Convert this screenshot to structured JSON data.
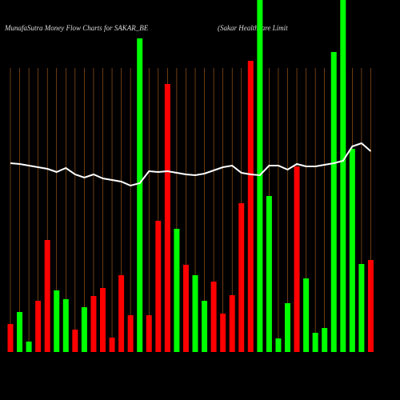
{
  "chart_data": {
    "type": "bar",
    "title": "MunafaSutra  Money Flow  Charts for SAKAR_BE",
    "subtitle": "(Sakar Healthcare   Limit",
    "values": [
      35,
      50,
      13,
      64,
      140,
      77,
      66,
      28,
      56,
      70,
      80,
      18,
      96,
      46,
      392,
      46,
      164,
      335,
      154,
      109,
      96,
      64,
      88,
      48,
      71,
      186,
      364,
      440,
      195,
      17,
      61,
      232,
      92,
      24,
      30,
      375,
      440,
      254,
      110,
      115
    ],
    "colors": [
      "red",
      "lime",
      "lime",
      "red",
      "red",
      "lime",
      "lime",
      "red",
      "lime",
      "red",
      "red",
      "red",
      "red",
      "red",
      "lime",
      "red",
      "red",
      "red",
      "lime",
      "red",
      "lime",
      "lime",
      "red",
      "red",
      "red",
      "red",
      "red",
      "lime",
      "lime",
      "lime",
      "lime",
      "red",
      "lime",
      "lime",
      "lime",
      "lime",
      "lime",
      "lime",
      "lime",
      "red"
    ],
    "line": {
      "color": "#ffffff",
      "values": [
        236,
        235,
        233,
        231,
        229,
        225,
        230,
        222,
        218,
        222,
        217,
        215,
        213,
        208,
        211,
        226,
        225,
        226,
        224,
        222,
        221,
        223,
        227,
        231,
        233,
        224,
        222,
        221,
        233,
        233,
        228,
        235,
        232,
        232,
        234,
        236,
        239,
        257,
        261,
        251
      ]
    }
  }
}
